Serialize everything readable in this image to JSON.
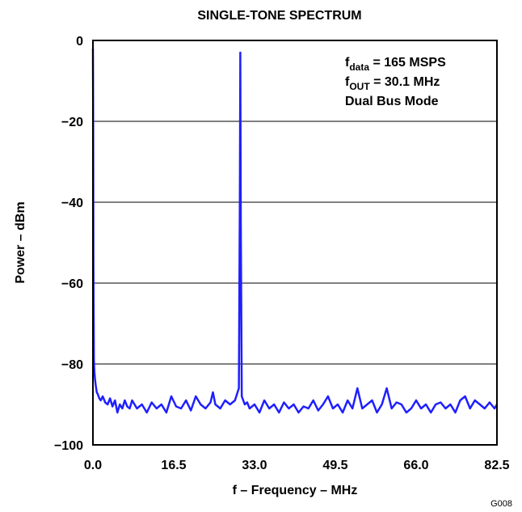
{
  "chart_data": {
    "type": "line",
    "title": "SINGLE-TONE SPECTRUM",
    "xlabel": "f – Frequency – MHz",
    "ylabel": "Power – dBm",
    "xlim": [
      0,
      82.5
    ],
    "ylim": [
      -100,
      0
    ],
    "x_ticks": [
      0.0,
      16.5,
      33.0,
      49.5,
      66.0,
      82.5
    ],
    "x_tick_labels": [
      "0.0",
      "16.5",
      "33.0",
      "49.5",
      "66.0",
      "82.5"
    ],
    "y_ticks": [
      0,
      -20,
      -40,
      -60,
      -80,
      -100
    ],
    "y_tick_labels": [
      "0",
      "−20",
      "−40",
      "−60",
      "−80",
      "−100"
    ],
    "grid": "horizontal",
    "line_color": "#1f1fff",
    "annotations": [
      {
        "main": "f",
        "sub": "data",
        "rest": " = 165 MSPS"
      },
      {
        "main": "f",
        "sub": "OUT",
        "rest": " = 30.1 MHz"
      },
      {
        "main": "Dual Bus Mode",
        "sub": "",
        "rest": ""
      }
    ],
    "figure_id": "G008",
    "series": [
      {
        "x": [
          0.0,
          0.05,
          0.1,
          0.2,
          0.3,
          0.45,
          0.6,
          0.8,
          1.0,
          1.3,
          1.6,
          2.0,
          2.5,
          3.0,
          3.5,
          4.0,
          4.5,
          5.0,
          5.5,
          6.0,
          6.5,
          7.0,
          7.5,
          8.0,
          9.0,
          10.0,
          11.0,
          12.0,
          13.0,
          14.0,
          15.0,
          16.0,
          17.0,
          18.0,
          19.0,
          20.0,
          21.0,
          22.0,
          23.0,
          24.0,
          24.5,
          25.0,
          26.0,
          27.0,
          28.0,
          29.0,
          29.8,
          30.0,
          30.1,
          30.2,
          30.4,
          31.0,
          31.5,
          32.0,
          33.0,
          34.0,
          35.0,
          36.0,
          37.0,
          38.0,
          39.0,
          40.0,
          41.0,
          42.0,
          43.0,
          44.0,
          45.0,
          46.0,
          47.0,
          48.0,
          49.0,
          50.0,
          51.0,
          52.0,
          53.0,
          54.0,
          55.0,
          56.0,
          57.0,
          58.0,
          59.0,
          60.0,
          61.0,
          62.0,
          63.0,
          64.0,
          65.0,
          66.0,
          67.0,
          68.0,
          69.0,
          70.0,
          71.0,
          72.0,
          73.0,
          74.0,
          75.0,
          76.0,
          77.0,
          78.0,
          79.0,
          80.0,
          81.0,
          82.0,
          82.5
        ],
        "y": [
          -2,
          -20,
          -55,
          -79,
          -82,
          -84,
          -85.5,
          -87,
          -87.5,
          -88.5,
          -89,
          -88,
          -89.5,
          -90,
          -88.5,
          -90.5,
          -89,
          -92,
          -90,
          -91,
          -89,
          -90.5,
          -91,
          -89,
          -91,
          -90,
          -92,
          -89.5,
          -91,
          -90,
          -92,
          -88,
          -90.5,
          -91,
          -89,
          -91.5,
          -88,
          -90,
          -91,
          -89.5,
          -87,
          -90,
          -91,
          -89,
          -90,
          -89,
          -86,
          -40,
          -3,
          -45,
          -88,
          -90,
          -89.5,
          -91,
          -90,
          -92,
          -89,
          -91,
          -90,
          -92,
          -89.5,
          -91,
          -90,
          -92,
          -90.5,
          -91,
          -89,
          -91.5,
          -90,
          -88,
          -91,
          -90,
          -92,
          -89,
          -91,
          -86,
          -91,
          -90,
          -89,
          -92,
          -90,
          -86,
          -91,
          -89.5,
          -90,
          -92,
          -91,
          -89,
          -91,
          -90,
          -92,
          -90,
          -89.5,
          -91,
          -90,
          -92,
          -89,
          -88,
          -91,
          -89,
          -90,
          -91,
          -89.5,
          -91,
          -90
        ]
      }
    ]
  }
}
